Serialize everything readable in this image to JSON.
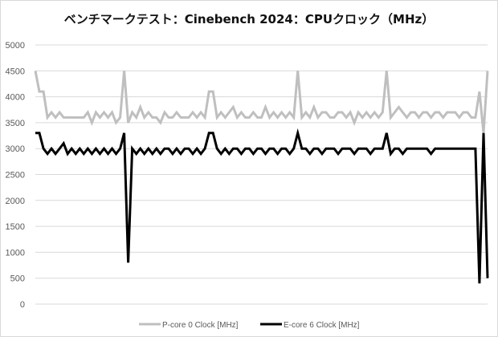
{
  "chart_data": {
    "type": "line",
    "title": "ベンチマークテスト：Cinebench 2024：CPUクロック（MHz）",
    "xlabel": "",
    "ylabel": "",
    "ylim": [
      0,
      5000
    ],
    "yticks": [
      0,
      500,
      1000,
      1500,
      2000,
      2500,
      3000,
      3500,
      4000,
      4500,
      5000
    ],
    "grid": true,
    "legend": "bottom",
    "series": [
      {
        "name": "P-core 0 Clock [MHz]",
        "color": "#bfbfbf",
        "values": [
          4500,
          4100,
          4100,
          3600,
          3700,
          3600,
          3700,
          3600,
          3600,
          3600,
          3600,
          3600,
          3600,
          3700,
          3500,
          3700,
          3600,
          3700,
          3600,
          3700,
          3500,
          3600,
          4500,
          3500,
          3700,
          3600,
          3800,
          3600,
          3700,
          3600,
          3600,
          3500,
          3700,
          3600,
          3600,
          3700,
          3600,
          3600,
          3600,
          3700,
          3600,
          3700,
          3600,
          4100,
          4100,
          3600,
          3700,
          3600,
          3700,
          3800,
          3600,
          3700,
          3600,
          3600,
          3700,
          3600,
          3600,
          3800,
          3600,
          3700,
          3600,
          3700,
          3600,
          3700,
          3600,
          4500,
          3600,
          3700,
          3600,
          3800,
          3600,
          3700,
          3700,
          3600,
          3600,
          3700,
          3700,
          3600,
          3700,
          3500,
          3700,
          3600,
          3700,
          3600,
          3700,
          3600,
          3700,
          4500,
          3600,
          3700,
          3800,
          3700,
          3600,
          3700,
          3700,
          3600,
          3700,
          3700,
          3600,
          3700,
          3700,
          3600,
          3700,
          3700,
          3700,
          3600,
          3700,
          3700,
          3600,
          3600,
          4100,
          3300,
          4500
        ]
      },
      {
        "name": "E-core 6 Clock [MHz]",
        "color": "#000000",
        "values": [
          3300,
          3300,
          3000,
          2900,
          3000,
          2900,
          3000,
          3100,
          2900,
          3000,
          2900,
          3000,
          2900,
          3000,
          2900,
          3000,
          2900,
          3000,
          2900,
          3000,
          2900,
          3000,
          3300,
          800,
          3000,
          2900,
          3000,
          2900,
          3000,
          2900,
          3000,
          2900,
          3000,
          3000,
          2900,
          3000,
          2900,
          3000,
          3000,
          2900,
          3000,
          2900,
          3000,
          3300,
          3300,
          3000,
          2900,
          3000,
          2900,
          3000,
          3000,
          2900,
          3000,
          3000,
          2900,
          3000,
          3000,
          2900,
          3000,
          3000,
          2900,
          3000,
          3000,
          2900,
          3000,
          3300,
          3000,
          3000,
          2900,
          3000,
          3000,
          2900,
          3000,
          3000,
          3000,
          2900,
          3000,
          3000,
          3000,
          2900,
          3000,
          3000,
          3000,
          2900,
          3000,
          3000,
          3000,
          3300,
          2900,
          3000,
          3000,
          2900,
          3000,
          3000,
          3000,
          3000,
          3000,
          3000,
          2900,
          3000,
          3000,
          3000,
          3000,
          3000,
          3000,
          3000,
          3000,
          3000,
          3000,
          3000,
          400,
          3300,
          500
        ]
      }
    ]
  }
}
